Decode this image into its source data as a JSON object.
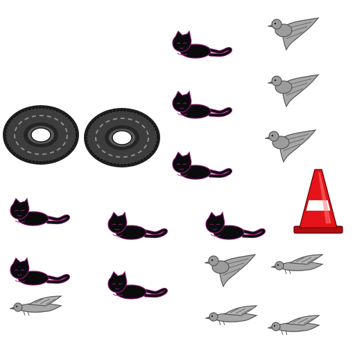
{
  "scene": {
    "background": "#ffffff",
    "colors": {
      "cat_body": "#0b0b0d",
      "cat_outline": "#8a1e6e",
      "bird_body": "#9c9c9c",
      "bird_dark": "#6b6b6b",
      "tire_rubber": "#3d3d3d",
      "tire_tread": "#1e1e1e",
      "cone_red": "#e5141a",
      "cone_stripe": "#ffffff"
    },
    "item_counts": {
      "cats": 8,
      "birds": 8,
      "tires": 2,
      "cones": 1
    }
  }
}
